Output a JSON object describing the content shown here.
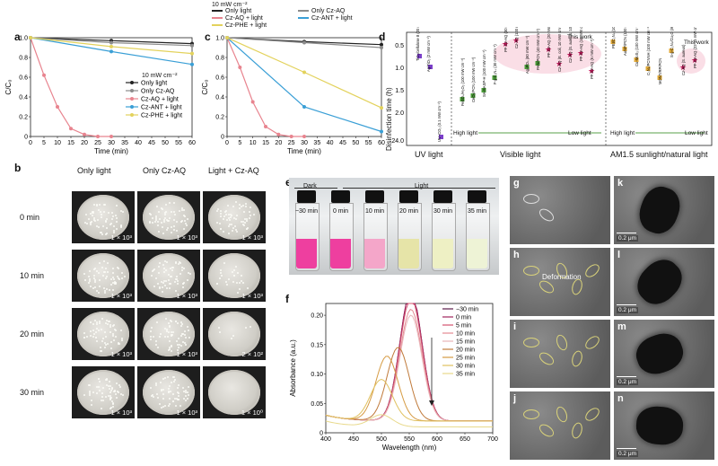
{
  "panels": {
    "a": {
      "label": "a",
      "legend": [
        "Only light",
        "Only Cz-AQ",
        "Cz-AQ + light",
        "Cz-ANT + light",
        "Cz-PHE + light"
      ],
      "power": "10 mW cm⁻²"
    },
    "c": {
      "label": "c",
      "power": "10 mW cm⁻²",
      "legend": [
        "Only light",
        "Cz-AQ + light",
        "Cz-PHE + light",
        "Only Cz-AQ",
        "Cz-ANT + light"
      ]
    },
    "b": {
      "label": "b",
      "col_headers": [
        "Only light",
        "Only Cz-AQ",
        "Light + Cz-AQ"
      ],
      "row_labels": [
        "0 min",
        "10 min",
        "20 min",
        "30 min"
      ],
      "counts": [
        [
          "1 × 10³",
          "1 × 10³",
          "1 × 10³"
        ],
        [
          "1 × 10³",
          "1 × 10³",
          "1 × 10³"
        ],
        [
          "1 × 10³",
          "1 × 10³",
          "2 × 10²"
        ],
        [
          "1 × 10³",
          "1 × 10³",
          "1 × 10⁰"
        ]
      ]
    },
    "d": {
      "label": "d",
      "ylabel": "Disinfection time (h)",
      "yticks": [
        "0.5",
        "1.0",
        "1.5",
        "2.0",
        "24.0"
      ],
      "regions": [
        "UV light",
        "Visible light",
        "AM1.5 sunlight/natural light"
      ],
      "arrows": [
        {
          "left": "High light",
          "right": "Low light"
        },
        {
          "left": "High light",
          "right": "Low light"
        }
      ],
      "this_work": "This work",
      "uv_items": [
        "TiO₂/cellulose 8 (20 mW cm⁻²)",
        "Ag/TiO₂ (2 mW cm⁻²)",
        "UV–CO₃ (0.1 mW cm⁻²)"
      ],
      "vis_items": [
        "FeSO₄/H₂O₂ (100 mW cm⁻²)",
        "CeO₂/PCN (100 mW cm⁻²)",
        "SA-SASP-H (100 mW cm⁻²)",
        "F-g-C₃N₄ (30 mW cm⁻²)",
        "PF-Cz-AQ (30 mW cm⁻²)",
        "Cz-AQ (100 mW cm⁻²)",
        "Ag₃PO₄ (80 mW cm⁻²)",
        "PAN/PCN (40 mW cm⁻²)",
        "PF-Cz-AQ (20 mW cm⁻²)",
        "Cz-AQ (E. coli, 10 mW cm⁻²)",
        "Cz-AQ (S. aureus, 10 mW cm⁻²)",
        "PF-Cz-AQ (10 mW cm⁻²)",
        "PF-Cz-AQ (6 mW cm⁻²)"
      ],
      "sun_items": [
        "PEI/C₃N₄ (100 mW cm⁻²)",
        "AuNP/PCN (100 mW cm⁻²)",
        "Cu-MoS₂ (100 mW cm⁻²)",
        "C₃N₄/PCNNH (100 mW cm⁻²)",
        "MONT/RP/PCN",
        "S-g-C₃N₄/Cu₂O (80 mW cm⁻²)",
        "Cz-AQ (S. aureus)",
        "PF-Cz-AQ (22-35 mW cm⁻²)"
      ]
    },
    "e": {
      "label": "e",
      "dark": "Dark",
      "light": "Light",
      "vials": [
        "−30 min",
        "0 min",
        "10 min",
        "20 min",
        "30 min",
        "35 min"
      ]
    },
    "f": {
      "label": "f",
      "xlabel": "Wavelength (nm)",
      "ylabel": "Absorbance (a.u.)",
      "legend": [
        "−30 min",
        "0 min",
        "5 min",
        "10 min",
        "15 min",
        "20 min",
        "25 min",
        "30 min",
        "35 min"
      ]
    },
    "em": [
      {
        "label": "g"
      },
      {
        "label": "h",
        "note": "Deformation"
      },
      {
        "label": "i"
      },
      {
        "label": "j"
      },
      {
        "label": "k",
        "scale": "0.2 μm"
      },
      {
        "label": "l",
        "scale": "0.2 μm"
      },
      {
        "label": "m",
        "scale": "0.2 μm"
      },
      {
        "label": "n",
        "scale": "0.2 μm"
      }
    ]
  },
  "colors": {
    "only_light": "#222222",
    "only_czaq": "#8c8c8c",
    "czaq_light": "#e8848f",
    "czant_light": "#3a9fd6",
    "czphe_light": "#e3d25c"
  },
  "chart_data": [
    {
      "type": "line",
      "panel": "a",
      "xlabel": "Time (min)",
      "ylabel": "C/C₀",
      "xlim": [
        0,
        60
      ],
      "ylim": [
        0,
        1.0
      ],
      "xticks": [
        0,
        5,
        10,
        15,
        20,
        25,
        30,
        35,
        40,
        45,
        50,
        55,
        60
      ],
      "yticks": [
        0,
        0.2,
        0.4,
        0.6,
        0.8,
        1.0
      ],
      "series": [
        {
          "name": "Only light",
          "x": [
            0,
            30,
            60
          ],
          "y": [
            1.0,
            0.97,
            0.94
          ]
        },
        {
          "name": "Only Cz-AQ",
          "x": [
            0,
            30,
            60
          ],
          "y": [
            1.0,
            0.95,
            0.92
          ]
        },
        {
          "name": "Cz-AQ + light",
          "x": [
            0,
            5,
            10,
            15,
            20,
            25,
            30
          ],
          "y": [
            1.0,
            0.62,
            0.3,
            0.08,
            0.02,
            0.0,
            0.0
          ]
        },
        {
          "name": "Cz-ANT + light",
          "x": [
            0,
            30,
            60
          ],
          "y": [
            1.0,
            0.86,
            0.73
          ]
        },
        {
          "name": "Cz-PHE + light",
          "x": [
            0,
            30,
            60
          ],
          "y": [
            1.0,
            0.91,
            0.84
          ]
        }
      ]
    },
    {
      "type": "line",
      "panel": "c",
      "xlabel": "Time (min)",
      "ylabel": "C/C₀",
      "xlim": [
        0,
        60
      ],
      "ylim": [
        0,
        1.0
      ],
      "xticks": [
        0,
        5,
        10,
        15,
        20,
        25,
        30,
        35,
        40,
        45,
        50,
        55,
        60
      ],
      "yticks": [
        0,
        0.2,
        0.4,
        0.6,
        0.8,
        1.0
      ],
      "series": [
        {
          "name": "Only light",
          "x": [
            0,
            30,
            60
          ],
          "y": [
            1.0,
            0.96,
            0.93
          ]
        },
        {
          "name": "Only Cz-AQ",
          "x": [
            0,
            30,
            60
          ],
          "y": [
            1.0,
            0.95,
            0.9
          ]
        },
        {
          "name": "Cz-AQ + light",
          "x": [
            0,
            5,
            10,
            15,
            20,
            25,
            30
          ],
          "y": [
            1.0,
            0.7,
            0.35,
            0.1,
            0.02,
            0.0,
            0.0
          ]
        },
        {
          "name": "Cz-ANT + light",
          "x": [
            0,
            30,
            60
          ],
          "y": [
            1.0,
            0.3,
            0.05
          ]
        },
        {
          "name": "Cz-PHE + light",
          "x": [
            0,
            30,
            60
          ],
          "y": [
            1.0,
            0.65,
            0.29
          ]
        }
      ]
    },
    {
      "type": "line",
      "panel": "f",
      "xlabel": "Wavelength (nm)",
      "ylabel": "Absorbance (a.u.)",
      "xlim": [
        400,
        700
      ],
      "ylim": [
        0,
        0.22
      ],
      "xticks": [
        400,
        450,
        500,
        550,
        600,
        650,
        700
      ],
      "yticks": [
        0,
        0.05,
        0.1,
        0.15,
        0.2
      ],
      "series": [
        {
          "name": "−30 min",
          "peak": 553,
          "height": 0.22,
          "base": 0.02
        },
        {
          "name": "0 min",
          "peak": 553,
          "height": 0.22,
          "base": 0.02
        },
        {
          "name": "5 min",
          "peak": 553,
          "height": 0.21,
          "base": 0.02
        },
        {
          "name": "10 min",
          "peak": 553,
          "height": 0.19,
          "base": 0.02
        },
        {
          "name": "15 min",
          "peak": 553,
          "height": 0.18,
          "base": 0.02
        },
        {
          "name": "20 min",
          "peak": 530,
          "height": 0.125,
          "base": 0.02
        },
        {
          "name": "25 min",
          "peak": 510,
          "height": 0.11,
          "base": 0.02
        },
        {
          "name": "30 min",
          "peak": 500,
          "height": 0.07,
          "base": 0.02
        },
        {
          "name": "35 min",
          "peak": 500,
          "height": 0.02,
          "base": 0.01
        }
      ]
    }
  ]
}
